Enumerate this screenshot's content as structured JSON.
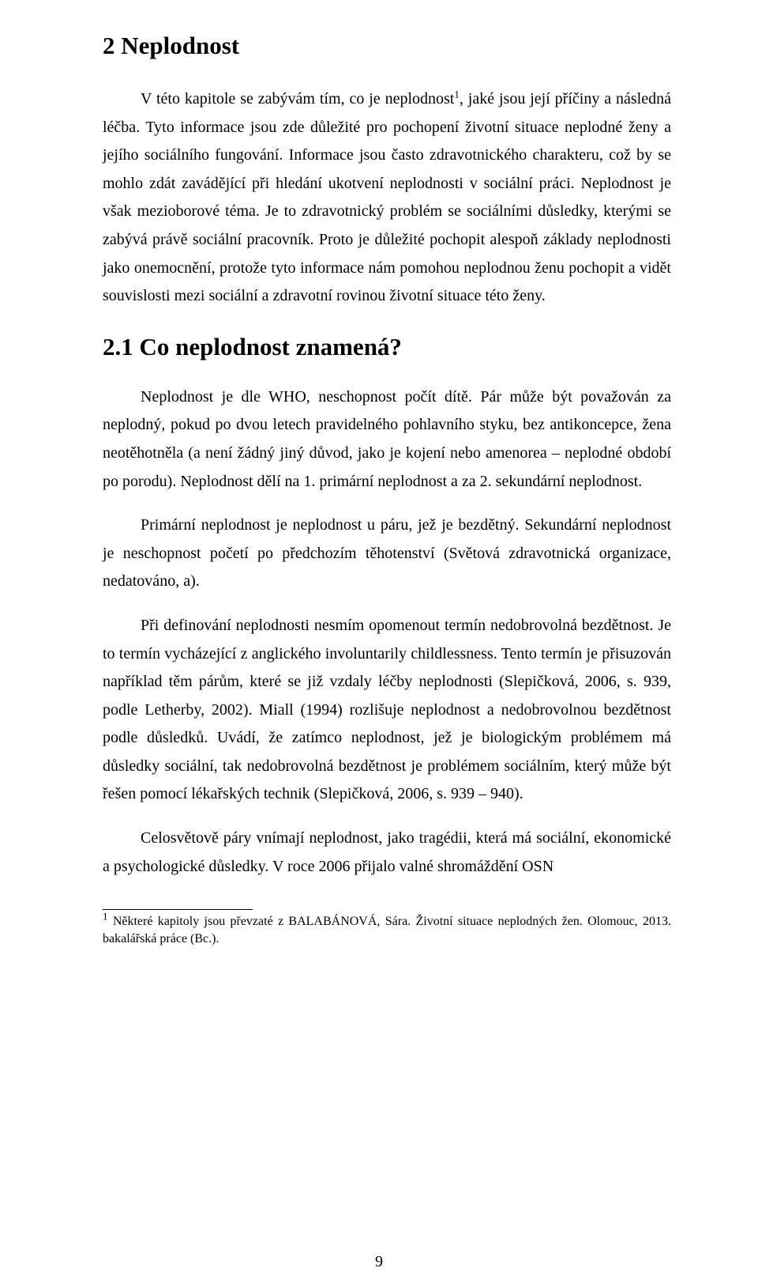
{
  "heading1": "2  Neplodnost",
  "para1_a": "V této kapitole se zabývám tím, co je neplodnost",
  "para1_sup": "1",
  "para1_b": ", jaké jsou její příčiny a následná léčba. Tyto informace jsou zde důležité pro pochopení životní situace neplodné ženy a jejího sociálního fungování. Informace jsou často zdravotnického charakteru, což by se mohlo zdát zavádějící při hledání ukotvení neplodnosti v sociální práci. Neplodnost je však mezioborové téma. Je to zdravotnický problém se sociálními důsledky, kterými se zabývá právě sociální pracovník. Proto je důležité pochopit alespoň základy neplodnosti jako onemocnění, protože tyto informace nám pomohou neplodnou ženu pochopit a vidět souvislosti mezi sociální a zdravotní rovinou životní situace této ženy.",
  "heading2": "2.1   Co neplodnost znamená?",
  "para2": "Neplodnost je dle WHO, neschopnost počít dítě. Pár může být považován za neplodný, pokud po dvou letech pravidelného pohlavního styku, bez antikoncepce, žena neotěhotněla (a není žádný jiný důvod, jako je kojení nebo amenorea – neplodné období po porodu). Neplodnost dělí na 1. primární neplodnost a za 2. sekundární neplodnost.",
  "para3": "Primární neplodnost je neplodnost u páru, jež je bezdětný. Sekundární neplodnost je neschopnost početí po předchozím těhotenství (Světová zdravotnická organizace, nedatováno, a).",
  "para4": "Při definování neplodnosti nesmím opomenout termín nedobrovolná bezdětnost. Je to termín vycházející z anglického involuntarily childlessness. Tento termín je přisuzován například těm párům, které se již vzdaly léčby neplodnosti (Slepičková, 2006, s. 939, podle Letherby, 2002). Miall (1994) rozlišuje neplodnost a nedobrovolnou bezdětnost podle důsledků. Uvádí, že zatímco neplodnost, jež je biologickým problémem má důsledky sociální, tak nedobrovolná bezdětnost je problémem sociálním, který může být řešen pomocí lékařských technik (Slepičková, 2006, s. 939 – 940).",
  "para5": "Celosvětově páry vnímají neplodnost, jako tragédii, která má sociální, ekonomické a psychologické důsledky. V roce 2006 přijalo valné shromáždění OSN",
  "footnote_sup": "1",
  "footnote_text": " Některé kapitoly jsou převzaté z BALABÁNOVÁ, Sára. Životní situace neplodných žen. Olomouc, 2013. bakalářská práce (Bc.).",
  "page_number": "9"
}
